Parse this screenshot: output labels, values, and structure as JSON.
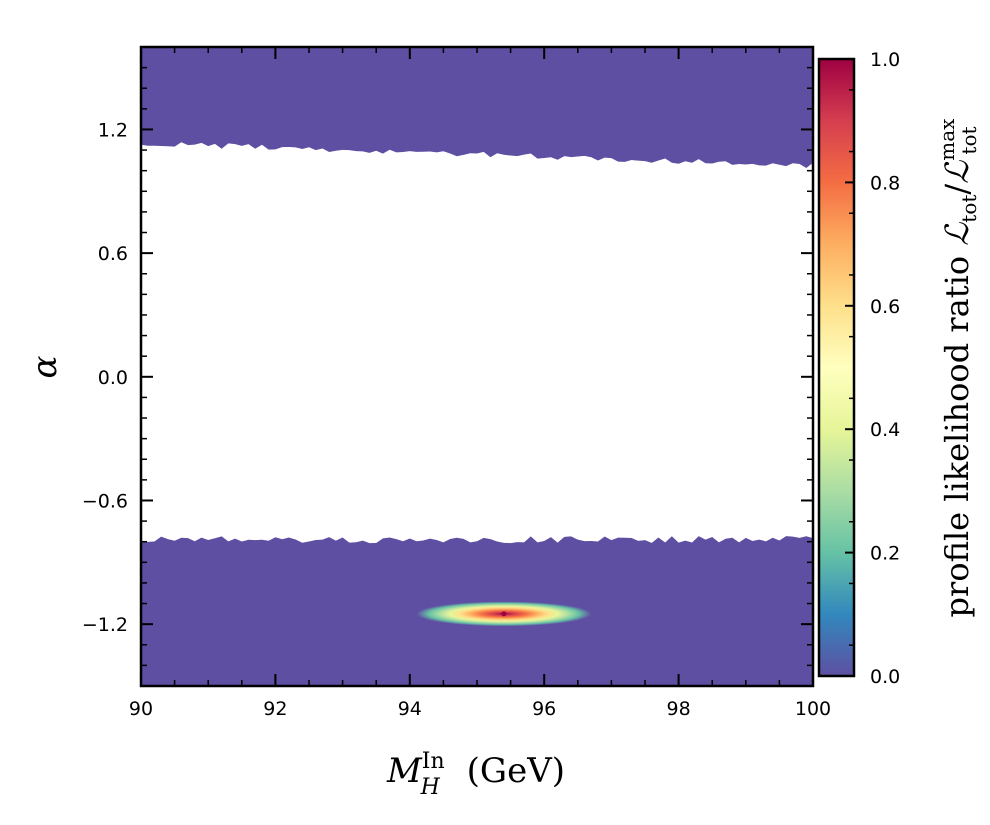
{
  "chart_data": {
    "type": "heatmap",
    "xlabel_main": "M",
    "xlabel_sub": "H",
    "xlabel_sup": "In",
    "xlabel_unit": " (GeV)",
    "ylabel": "α",
    "xlim": [
      90,
      100
    ],
    "ylim": [
      -1.5,
      1.6
    ],
    "x_ticks": [
      90,
      92,
      94,
      96,
      98,
      100
    ],
    "x_tick_labels": [
      "90",
      "92",
      "94",
      "96",
      "98",
      "100"
    ],
    "y_ticks": [
      -1.2,
      -0.6,
      0.0,
      0.6,
      1.2
    ],
    "y_tick_labels": [
      "−1.2",
      "−0.6",
      "0.0",
      "0.6",
      "1.2"
    ],
    "colorbar": {
      "label": "profile likelihood ratio ℒtot/ℒtot max",
      "label_main": "profile likelihood ratio ",
      "label_L": "ℒ",
      "label_sub": "tot",
      "label_slash": "/",
      "label_sup": "max",
      "range": [
        0.0,
        1.0
      ],
      "ticks": [
        0.0,
        0.2,
        0.4,
        0.6,
        0.8,
        1.0
      ],
      "tick_labels": [
        "0.0",
        "0.2",
        "0.4",
        "0.6",
        "0.8",
        "1.0"
      ],
      "colormap": "Spectral_r",
      "stops": [
        "#5e4fa2",
        "#3288bd",
        "#66c2a5",
        "#abdda4",
        "#e6f598",
        "#ffffbf",
        "#fee08b",
        "#fdae61",
        "#f46d43",
        "#d53e4f",
        "#9e0142"
      ]
    },
    "regions": [
      {
        "name": "upper allowed band",
        "x_range": [
          90,
          100
        ],
        "alpha_top": 1.6,
        "alpha_bottom_at_x90": 1.14,
        "alpha_bottom_at_x100": 1.03,
        "value": 0.0
      },
      {
        "name": "lower allowed band",
        "x_range": [
          90,
          100
        ],
        "alpha_bottom": -1.5,
        "alpha_top_approx": -0.79,
        "value": 0.0
      }
    ],
    "peak": {
      "x": 95.4,
      "alpha": -1.15,
      "value": 1.0,
      "x_halfwidth_low_level": 1.3,
      "alpha_halfwidth_low_level": 0.06
    }
  }
}
